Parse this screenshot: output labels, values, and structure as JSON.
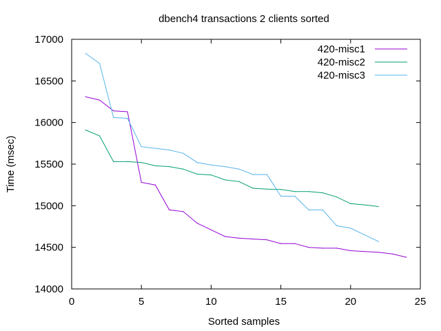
{
  "chart_data": {
    "type": "line",
    "title": "dbench4 transactions 2 clients sorted",
    "xlabel": "Sorted samples",
    "ylabel": "Time (msec)",
    "xlim": [
      0,
      25
    ],
    "ylim": [
      14000,
      17000
    ],
    "xticks": [
      "0",
      "5",
      "10",
      "15",
      "20",
      "25"
    ],
    "yticks": [
      "14000",
      "14500",
      "15000",
      "15500",
      "16000",
      "16500",
      "17000"
    ],
    "grid": false,
    "legend_position": "top-right",
    "series": [
      {
        "name": "420-misc1",
        "color": "#9400d3",
        "x": [
          1,
          2,
          3,
          4,
          5,
          6,
          7,
          8,
          9,
          10,
          11,
          12,
          13,
          14,
          15,
          16,
          17,
          18,
          19,
          20,
          21,
          22,
          23,
          24
        ],
        "values": [
          16310,
          16270,
          16140,
          16130,
          15280,
          15250,
          14950,
          14930,
          14790,
          14710,
          14630,
          14610,
          14600,
          14590,
          14545,
          14545,
          14500,
          14490,
          14490,
          14460,
          14450,
          14440,
          14420,
          14380
        ]
      },
      {
        "name": "420-misc2",
        "color": "#009e73",
        "x": [
          1,
          2,
          3,
          4,
          5,
          6,
          7,
          8,
          9,
          10,
          11,
          12,
          13,
          14,
          15,
          16,
          17,
          18,
          19,
          20,
          21,
          22
        ],
        "values": [
          15910,
          15840,
          15530,
          15530,
          15520,
          15480,
          15470,
          15440,
          15380,
          15370,
          15310,
          15290,
          15210,
          15200,
          15195,
          15170,
          15170,
          15155,
          15105,
          15025,
          15010,
          14990
        ]
      },
      {
        "name": "420-misc3",
        "color": "#56b4e9",
        "x": [
          1,
          2,
          3,
          4,
          5,
          6,
          7,
          8,
          9,
          10,
          11,
          12,
          13,
          14,
          15,
          16,
          17,
          18,
          19,
          20,
          21,
          22
        ],
        "values": [
          16830,
          16710,
          16060,
          16050,
          15710,
          15690,
          15670,
          15630,
          15520,
          15490,
          15470,
          15440,
          15375,
          15375,
          15115,
          15115,
          14950,
          14950,
          14760,
          14730,
          14650,
          14570
        ]
      }
    ]
  }
}
